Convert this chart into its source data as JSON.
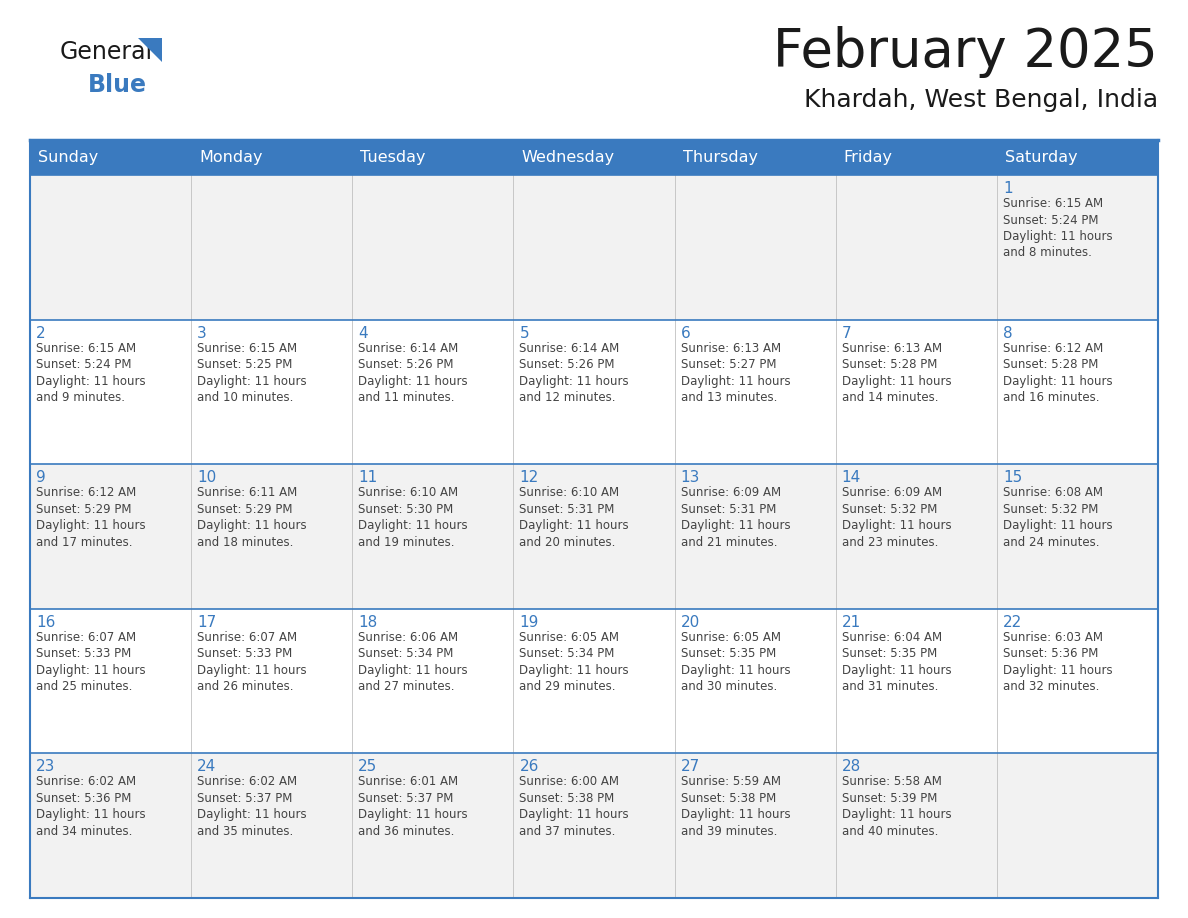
{
  "title": "February 2025",
  "subtitle": "Khardah, West Bengal, India",
  "header_bg": "#3a7abf",
  "header_text_color": "#ffffff",
  "row_bg_gray": "#f2f2f2",
  "row_bg_white": "#ffffff",
  "border_color": "#3a7abf",
  "sep_color": "#c0c0c0",
  "text_color": "#444444",
  "day_number_color": "#3a7abf",
  "logo_general_color": "#1a1a1a",
  "logo_blue_color": "#3a7abf",
  "logo_triangle_color": "#3a7abf",
  "days_of_week": [
    "Sunday",
    "Monday",
    "Tuesday",
    "Wednesday",
    "Thursday",
    "Friday",
    "Saturday"
  ],
  "weeks": [
    [
      {
        "day": "",
        "info": ""
      },
      {
        "day": "",
        "info": ""
      },
      {
        "day": "",
        "info": ""
      },
      {
        "day": "",
        "info": ""
      },
      {
        "day": "",
        "info": ""
      },
      {
        "day": "",
        "info": ""
      },
      {
        "day": "1",
        "info": "Sunrise: 6:15 AM\nSunset: 5:24 PM\nDaylight: 11 hours\nand 8 minutes."
      }
    ],
    [
      {
        "day": "2",
        "info": "Sunrise: 6:15 AM\nSunset: 5:24 PM\nDaylight: 11 hours\nand 9 minutes."
      },
      {
        "day": "3",
        "info": "Sunrise: 6:15 AM\nSunset: 5:25 PM\nDaylight: 11 hours\nand 10 minutes."
      },
      {
        "day": "4",
        "info": "Sunrise: 6:14 AM\nSunset: 5:26 PM\nDaylight: 11 hours\nand 11 minutes."
      },
      {
        "day": "5",
        "info": "Sunrise: 6:14 AM\nSunset: 5:26 PM\nDaylight: 11 hours\nand 12 minutes."
      },
      {
        "day": "6",
        "info": "Sunrise: 6:13 AM\nSunset: 5:27 PM\nDaylight: 11 hours\nand 13 minutes."
      },
      {
        "day": "7",
        "info": "Sunrise: 6:13 AM\nSunset: 5:28 PM\nDaylight: 11 hours\nand 14 minutes."
      },
      {
        "day": "8",
        "info": "Sunrise: 6:12 AM\nSunset: 5:28 PM\nDaylight: 11 hours\nand 16 minutes."
      }
    ],
    [
      {
        "day": "9",
        "info": "Sunrise: 6:12 AM\nSunset: 5:29 PM\nDaylight: 11 hours\nand 17 minutes."
      },
      {
        "day": "10",
        "info": "Sunrise: 6:11 AM\nSunset: 5:29 PM\nDaylight: 11 hours\nand 18 minutes."
      },
      {
        "day": "11",
        "info": "Sunrise: 6:10 AM\nSunset: 5:30 PM\nDaylight: 11 hours\nand 19 minutes."
      },
      {
        "day": "12",
        "info": "Sunrise: 6:10 AM\nSunset: 5:31 PM\nDaylight: 11 hours\nand 20 minutes."
      },
      {
        "day": "13",
        "info": "Sunrise: 6:09 AM\nSunset: 5:31 PM\nDaylight: 11 hours\nand 21 minutes."
      },
      {
        "day": "14",
        "info": "Sunrise: 6:09 AM\nSunset: 5:32 PM\nDaylight: 11 hours\nand 23 minutes."
      },
      {
        "day": "15",
        "info": "Sunrise: 6:08 AM\nSunset: 5:32 PM\nDaylight: 11 hours\nand 24 minutes."
      }
    ],
    [
      {
        "day": "16",
        "info": "Sunrise: 6:07 AM\nSunset: 5:33 PM\nDaylight: 11 hours\nand 25 minutes."
      },
      {
        "day": "17",
        "info": "Sunrise: 6:07 AM\nSunset: 5:33 PM\nDaylight: 11 hours\nand 26 minutes."
      },
      {
        "day": "18",
        "info": "Sunrise: 6:06 AM\nSunset: 5:34 PM\nDaylight: 11 hours\nand 27 minutes."
      },
      {
        "day": "19",
        "info": "Sunrise: 6:05 AM\nSunset: 5:34 PM\nDaylight: 11 hours\nand 29 minutes."
      },
      {
        "day": "20",
        "info": "Sunrise: 6:05 AM\nSunset: 5:35 PM\nDaylight: 11 hours\nand 30 minutes."
      },
      {
        "day": "21",
        "info": "Sunrise: 6:04 AM\nSunset: 5:35 PM\nDaylight: 11 hours\nand 31 minutes."
      },
      {
        "day": "22",
        "info": "Sunrise: 6:03 AM\nSunset: 5:36 PM\nDaylight: 11 hours\nand 32 minutes."
      }
    ],
    [
      {
        "day": "23",
        "info": "Sunrise: 6:02 AM\nSunset: 5:36 PM\nDaylight: 11 hours\nand 34 minutes."
      },
      {
        "day": "24",
        "info": "Sunrise: 6:02 AM\nSunset: 5:37 PM\nDaylight: 11 hours\nand 35 minutes."
      },
      {
        "day": "25",
        "info": "Sunrise: 6:01 AM\nSunset: 5:37 PM\nDaylight: 11 hours\nand 36 minutes."
      },
      {
        "day": "26",
        "info": "Sunrise: 6:00 AM\nSunset: 5:38 PM\nDaylight: 11 hours\nand 37 minutes."
      },
      {
        "day": "27",
        "info": "Sunrise: 5:59 AM\nSunset: 5:38 PM\nDaylight: 11 hours\nand 39 minutes."
      },
      {
        "day": "28",
        "info": "Sunrise: 5:58 AM\nSunset: 5:39 PM\nDaylight: 11 hours\nand 40 minutes."
      },
      {
        "day": "",
        "info": ""
      }
    ]
  ]
}
